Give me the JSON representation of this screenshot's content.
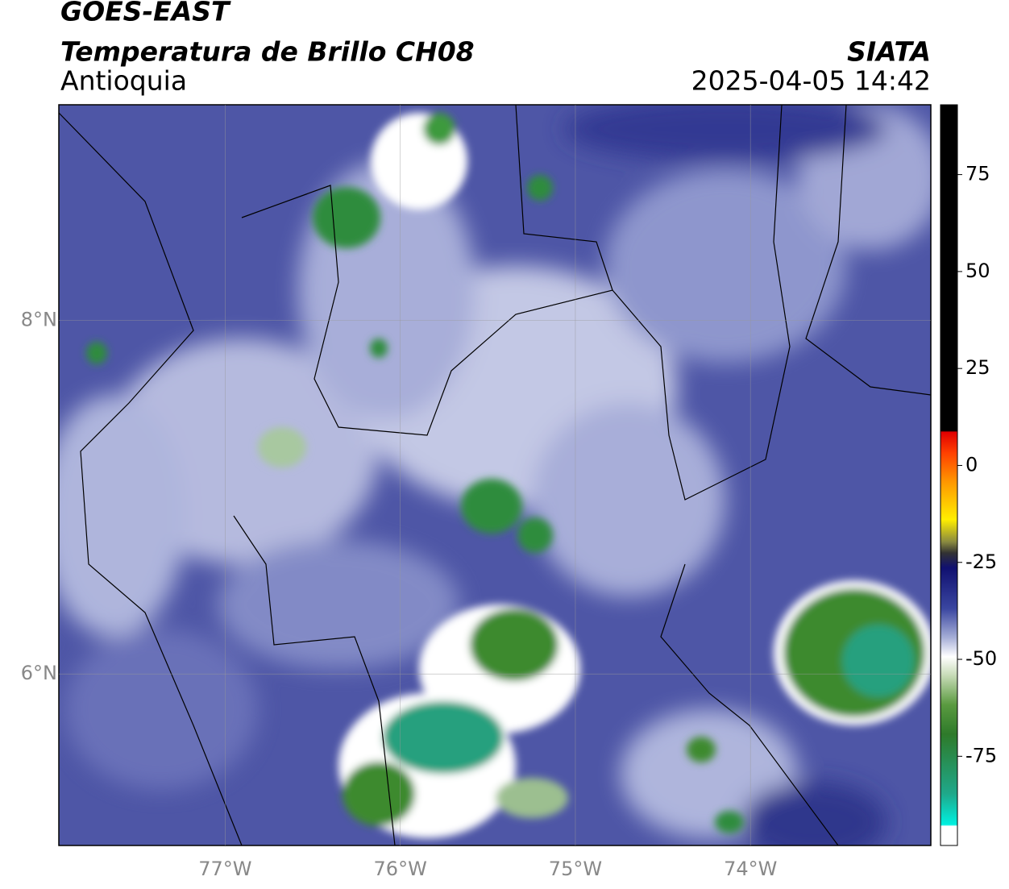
{
  "header": {
    "title": "GOES-EAST",
    "subtitle": "Temperatura de Brillo CH08",
    "region": "Antioquia",
    "source": "SIATA",
    "datetime": "2025-04-05 14:42"
  },
  "map": {
    "lon_range": [
      -77.95,
      -72.97
    ],
    "lat_range": [
      5.03,
      9.22
    ],
    "lat_ticks": [
      {
        "value": 8,
        "label": "8°N"
      },
      {
        "value": 6,
        "label": "6°N"
      }
    ],
    "lon_ticks": [
      {
        "value": -77,
        "label": "77°W"
      },
      {
        "value": -76,
        "label": "76°W"
      },
      {
        "value": -75,
        "label": "75°W"
      },
      {
        "value": -74,
        "label": "74°W"
      }
    ]
  },
  "colorbar": {
    "range": [
      -98,
      93
    ],
    "ticks": [
      75,
      50,
      25,
      0,
      -25,
      -50,
      -75
    ]
  }
}
